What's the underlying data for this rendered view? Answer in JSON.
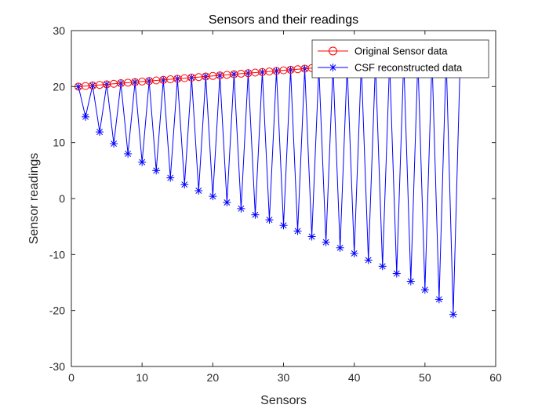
{
  "chart_data": {
    "type": "line",
    "title": "Sensors and their readings",
    "xlabel": "Sensors",
    "ylabel": "Sensor readings",
    "xlim": [
      0,
      60
    ],
    "ylim": [
      -30,
      30
    ],
    "xticks": [
      0,
      10,
      20,
      30,
      40,
      50,
      60
    ],
    "yticks": [
      -30,
      -20,
      -10,
      0,
      10,
      20,
      30
    ],
    "x_tick_labels": [
      "0",
      "10",
      "20",
      "30",
      "40",
      "50",
      "60"
    ],
    "y_tick_labels": [
      "-30",
      "-20",
      "-10",
      "0",
      "10",
      "20",
      "30"
    ],
    "grid": false,
    "legend_position": "top-right",
    "series": [
      {
        "name": "Original Sensor data",
        "color": "#ff0000",
        "marker": "circle",
        "x": [
          1,
          2,
          3,
          4,
          5,
          6,
          7,
          8,
          9,
          10,
          11,
          12,
          13,
          14,
          15,
          16,
          17,
          18,
          19,
          20,
          21,
          22,
          23,
          24,
          25,
          26,
          27,
          28,
          29,
          30,
          31,
          32,
          33,
          34,
          35,
          36,
          37,
          38,
          39,
          40,
          41,
          42,
          43,
          44,
          45,
          46,
          47,
          48,
          49,
          50,
          51,
          52,
          53,
          54,
          55
        ],
        "values": [
          20,
          20.1,
          20.2,
          20.3,
          20.4,
          20.5,
          20.6,
          20.7,
          20.8,
          20.9,
          21,
          21.1,
          21.2,
          21.3,
          21.4,
          21.5,
          21.6,
          21.7,
          21.8,
          21.9,
          22,
          22.1,
          22.2,
          22.3,
          22.4,
          22.5,
          22.6,
          22.7,
          22.8,
          22.9,
          23,
          23.1,
          23.2,
          23.3,
          23.4,
          23.5,
          23.6,
          23.7,
          23.8,
          23.9,
          24,
          24.1,
          24.2,
          24.3,
          24.4,
          24.5,
          24.6,
          24.7,
          24.8,
          24.9,
          25,
          25.1,
          25.2,
          25.3,
          25.4
        ]
      },
      {
        "name": "CSF reconstructed data",
        "color": "#0000ff",
        "marker": "asterisk",
        "x": [
          1,
          2,
          3,
          4,
          5,
          6,
          7,
          8,
          9,
          10,
          11,
          12,
          13,
          14,
          15,
          16,
          17,
          18,
          19,
          20,
          21,
          22,
          23,
          24,
          25,
          26,
          27,
          28,
          29,
          30,
          31,
          32,
          33,
          34,
          35,
          36,
          37,
          38,
          39,
          40,
          41,
          42,
          43,
          44,
          45,
          46,
          47,
          48,
          49,
          50,
          51,
          52,
          53,
          54,
          55
        ],
        "values": [
          20,
          14.6,
          20.2,
          11.9,
          20.4,
          9.8,
          20.6,
          8,
          20.8,
          6.5,
          21,
          5,
          21.2,
          3.7,
          21.4,
          2.5,
          21.6,
          1.4,
          21.8,
          0.4,
          22,
          -0.7,
          22.2,
          -1.8,
          22.4,
          -2.9,
          22.6,
          -3.8,
          22.8,
          -4.8,
          23,
          -5.8,
          23.2,
          -6.8,
          23.4,
          -7.8,
          23.6,
          -8.8,
          23.8,
          -9.8,
          24,
          -11,
          24.2,
          -12.1,
          24.4,
          -13.4,
          24.6,
          -14.8,
          24.8,
          -16.3,
          25,
          -18,
          25.2,
          -20.7,
          25.4
        ]
      }
    ]
  }
}
